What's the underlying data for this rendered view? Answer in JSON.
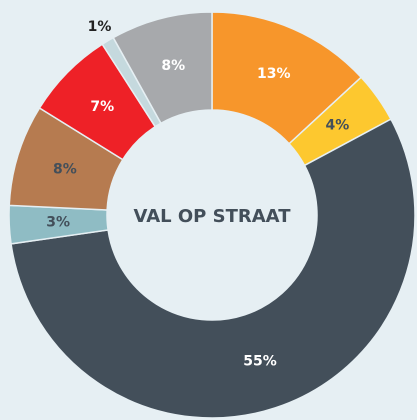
{
  "chart_data": {
    "type": "donut",
    "center_label": "VAL OP STRAAT",
    "values": [
      13,
      4,
      55,
      3,
      8,
      7,
      1,
      8
    ],
    "value_labels": [
      "13%",
      "4%",
      "55%",
      "3%",
      "8%",
      "7%",
      "1%",
      "8%"
    ],
    "colors": [
      "#f7962b",
      "#fdc82f",
      "#434f5a",
      "#8fbcc4",
      "#b67b50",
      "#ee2127",
      "#c5d9de",
      "#a7a9ac"
    ],
    "label_colors": [
      "#ffffff",
      "#434f5a",
      "#ffffff",
      "#434f5a",
      "#434f5a",
      "#ffffff",
      "#222222",
      "#ffffff"
    ]
  }
}
